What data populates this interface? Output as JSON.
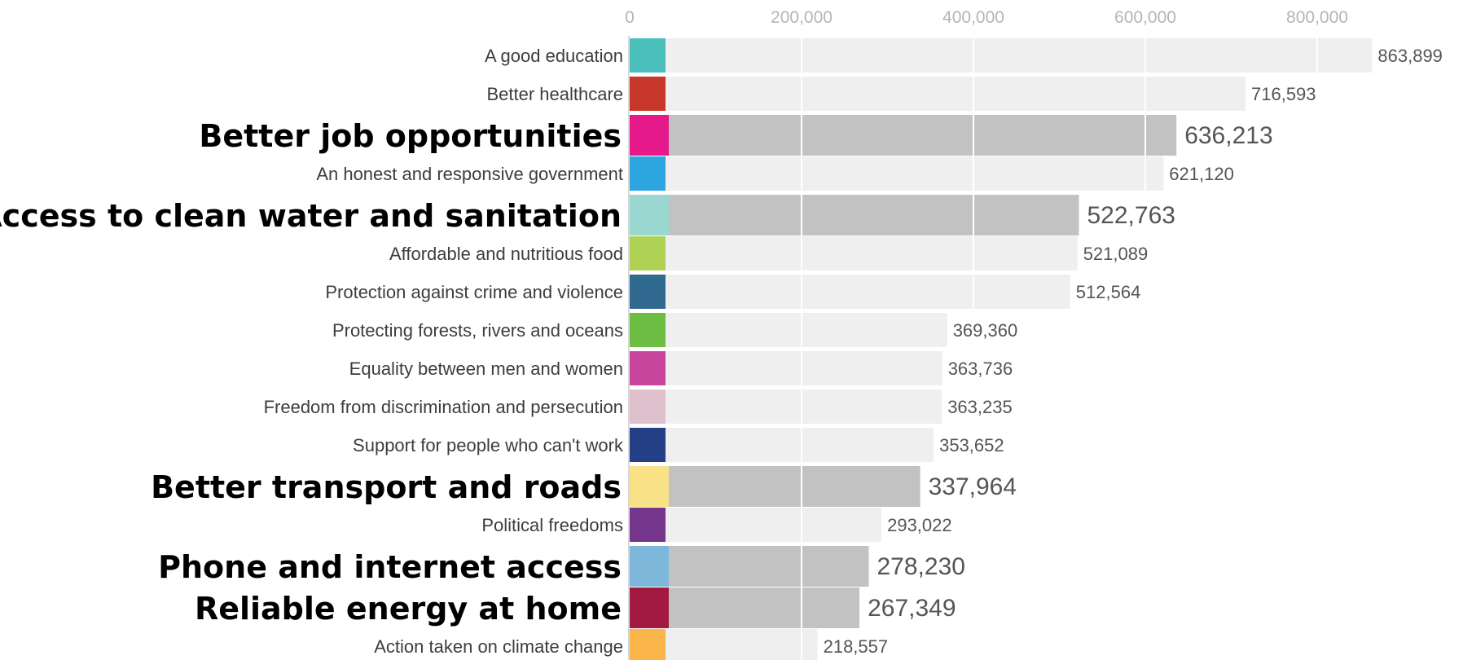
{
  "chart_data": {
    "type": "bar",
    "orientation": "horizontal",
    "title": "",
    "xlabel": "",
    "ylabel": "",
    "xlim": [
      0,
      950000
    ],
    "x_ticks": [
      0,
      200000,
      400000,
      600000,
      800000
    ],
    "x_tick_labels": [
      "0",
      "200,000",
      "400,000",
      "600,000",
      "800,000"
    ],
    "grid": true,
    "categories": [
      "A good education",
      "Better healthcare",
      "Better job opportunities",
      "An honest and responsive government",
      "Access to clean water and sanitation",
      "Affordable and nutritious food",
      "Protection against crime and violence",
      "Protecting forests, rivers and oceans",
      "Equality between men and women",
      "Freedom from discrimination and persecution",
      "Support for people who can't work",
      "Better transport and roads",
      "Political freedoms",
      "Phone and internet access",
      "Reliable energy at home",
      "Action taken on climate change"
    ],
    "values": [
      863899,
      716593,
      636213,
      621120,
      522763,
      521089,
      512564,
      369360,
      363736,
      363235,
      353652,
      337964,
      293022,
      278230,
      267349,
      218557
    ],
    "value_labels": [
      "863,899",
      "716,593",
      "636,213",
      "621,120",
      "522,763",
      "521,089",
      "512,564",
      "369,360",
      "363,736",
      "363,235",
      "353,652",
      "337,964",
      "293,022",
      "278,230",
      "267,349",
      "218,557"
    ],
    "highlighted": [
      false,
      false,
      true,
      false,
      true,
      false,
      false,
      false,
      false,
      false,
      false,
      true,
      false,
      true,
      true,
      false
    ],
    "swatch_colors": [
      "#4bbfba",
      "#c8372b",
      "#e5198a",
      "#2da6df",
      "#9ad7d0",
      "#afd156",
      "#316a91",
      "#6dbd45",
      "#c8479d",
      "#dfc0cd",
      "#233f86",
      "#f8e186",
      "#74358c",
      "#7db7da",
      "#a31a40",
      "#f9b54a"
    ],
    "colors": {
      "bar_normal": "#efefef",
      "bar_highlight": "#c2c2c2",
      "grid": "#ffffff",
      "axis_tick_text": "#b5b5b5",
      "label_normal": "#3d3d3d",
      "label_highlight": "#000000"
    }
  }
}
